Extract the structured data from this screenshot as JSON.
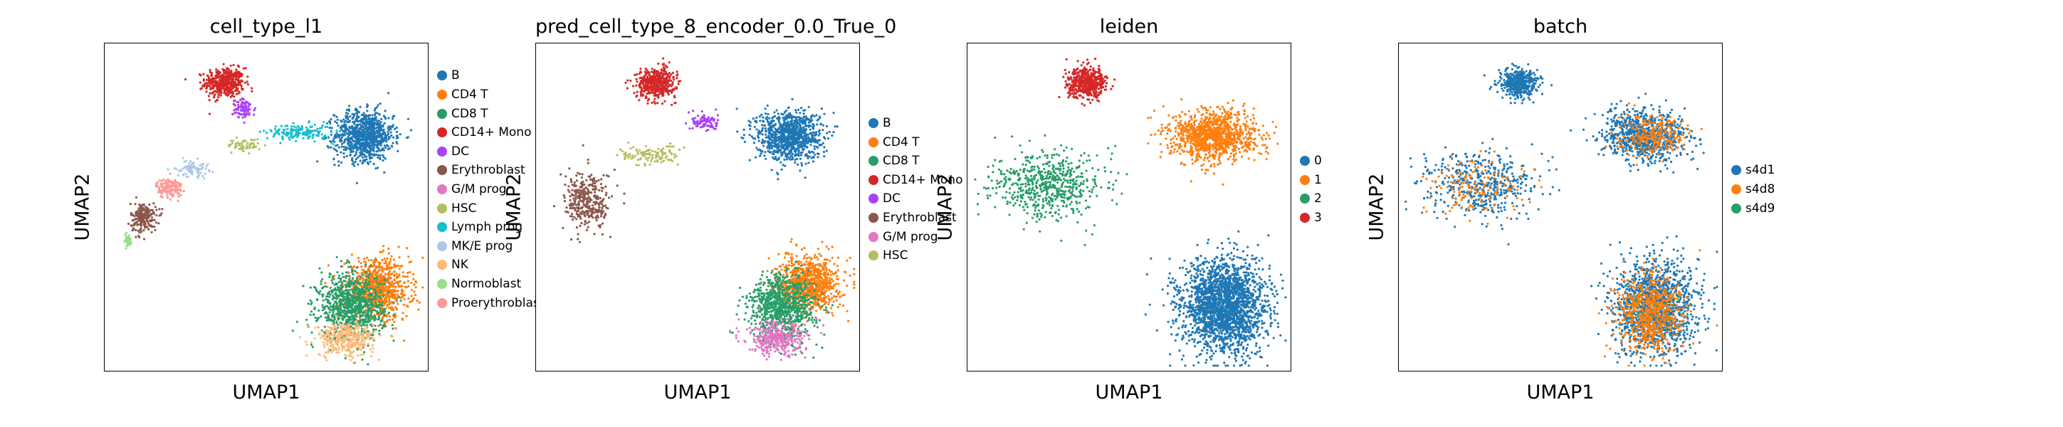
{
  "chart_data": [
    {
      "type": "scatter",
      "title": "cell_type_l1",
      "xlabel": "UMAP1",
      "ylabel": "UMAP2",
      "legend_position": "right",
      "legend": [
        {
          "label": "B",
          "color": "#1f77b4"
        },
        {
          "label": "CD4 T",
          "color": "#ff7f0e"
        },
        {
          "label": "CD8 T",
          "color": "#279e68"
        },
        {
          "label": "CD14+ Mono",
          "color": "#d62728"
        },
        {
          "label": "DC",
          "color": "#aa40fc"
        },
        {
          "label": "Erythroblast",
          "color": "#8c564b"
        },
        {
          "label": "G/M prog",
          "color": "#e377c2"
        },
        {
          "label": "HSC",
          "color": "#b5bd61"
        },
        {
          "label": "Lymph prog",
          "color": "#17becf"
        },
        {
          "label": "MK/E prog",
          "color": "#aec7e8"
        },
        {
          "label": "NK",
          "color": "#ffbb78"
        },
        {
          "label": "Normoblast",
          "color": "#98df8a"
        },
        {
          "label": "Proerythroblast",
          "color": "#ff9896"
        }
      ],
      "clusters": [
        {
          "cat": "CD14+ Mono",
          "cx": 0.37,
          "cy": 0.88,
          "rx": 0.06,
          "ry": 0.045,
          "n": 450
        },
        {
          "cat": "DC",
          "cx": 0.43,
          "cy": 0.8,
          "rx": 0.035,
          "ry": 0.03,
          "n": 90
        },
        {
          "cat": "B",
          "cx": 0.8,
          "cy": 0.72,
          "rx": 0.09,
          "ry": 0.075,
          "n": 900
        },
        {
          "cat": "Lymph prog",
          "cx": 0.6,
          "cy": 0.73,
          "rx": 0.1,
          "ry": 0.025,
          "n": 160
        },
        {
          "cat": "HSC",
          "cx": 0.43,
          "cy": 0.69,
          "rx": 0.05,
          "ry": 0.02,
          "n": 60
        },
        {
          "cat": "MK/E prog",
          "cx": 0.27,
          "cy": 0.62,
          "rx": 0.05,
          "ry": 0.025,
          "n": 80
        },
        {
          "cat": "Proerythroblast",
          "cx": 0.2,
          "cy": 0.56,
          "rx": 0.04,
          "ry": 0.03,
          "n": 150
        },
        {
          "cat": "Erythroblast",
          "cx": 0.12,
          "cy": 0.47,
          "rx": 0.04,
          "ry": 0.045,
          "n": 200
        },
        {
          "cat": "Normoblast",
          "cx": 0.07,
          "cy": 0.4,
          "rx": 0.015,
          "ry": 0.02,
          "n": 40
        },
        {
          "cat": "CD4 T",
          "cx": 0.84,
          "cy": 0.25,
          "rx": 0.1,
          "ry": 0.09,
          "n": 900
        },
        {
          "cat": "CD8 T",
          "cx": 0.76,
          "cy": 0.2,
          "rx": 0.1,
          "ry": 0.1,
          "n": 900
        },
        {
          "cat": "NK",
          "cx": 0.74,
          "cy": 0.1,
          "rx": 0.09,
          "ry": 0.05,
          "n": 350
        }
      ]
    },
    {
      "type": "scatter",
      "title": "pred_cell_type_8_encoder_0.0_True_0",
      "xlabel": "UMAP1",
      "ylabel": "UMAP2",
      "legend_position": "right",
      "legend": [
        {
          "label": "B",
          "color": "#1f77b4"
        },
        {
          "label": "CD4 T",
          "color": "#ff7f0e"
        },
        {
          "label": "CD8 T",
          "color": "#279e68"
        },
        {
          "label": "CD14+ Mono",
          "color": "#d62728"
        },
        {
          "label": "DC",
          "color": "#aa40fc"
        },
        {
          "label": "Erythroblast",
          "color": "#8c564b"
        },
        {
          "label": "G/M prog",
          "color": "#e377c2"
        },
        {
          "label": "HSC",
          "color": "#b5bd61"
        }
      ],
      "clusters": [
        {
          "cat": "CD14+ Mono",
          "cx": 0.37,
          "cy": 0.88,
          "rx": 0.06,
          "ry": 0.045,
          "n": 450
        },
        {
          "cat": "DC",
          "cx": 0.52,
          "cy": 0.76,
          "rx": 0.04,
          "ry": 0.03,
          "n": 90
        },
        {
          "cat": "B",
          "cx": 0.78,
          "cy": 0.72,
          "rx": 0.1,
          "ry": 0.075,
          "n": 950
        },
        {
          "cat": "HSC",
          "cx": 0.35,
          "cy": 0.66,
          "rx": 0.09,
          "ry": 0.03,
          "n": 120
        },
        {
          "cat": "Erythroblast",
          "cx": 0.16,
          "cy": 0.52,
          "rx": 0.07,
          "ry": 0.09,
          "n": 330
        },
        {
          "cat": "CD4 T",
          "cx": 0.84,
          "cy": 0.27,
          "rx": 0.09,
          "ry": 0.08,
          "n": 900
        },
        {
          "cat": "CD8 T",
          "cx": 0.76,
          "cy": 0.2,
          "rx": 0.1,
          "ry": 0.1,
          "n": 900
        },
        {
          "cat": "G/M prog",
          "cx": 0.74,
          "cy": 0.1,
          "rx": 0.09,
          "ry": 0.05,
          "n": 350
        }
      ]
    },
    {
      "type": "scatter",
      "title": "leiden",
      "xlabel": "UMAP1",
      "ylabel": "UMAP2",
      "legend_position": "right",
      "legend": [
        {
          "label": "0",
          "color": "#1f77b4"
        },
        {
          "label": "1",
          "color": "#ff7f0e"
        },
        {
          "label": "2",
          "color": "#279e68"
        },
        {
          "label": "3",
          "color": "#d62728"
        }
      ],
      "clusters": [
        {
          "cat": "3",
          "cx": 0.37,
          "cy": 0.88,
          "rx": 0.06,
          "ry": 0.045,
          "n": 500
        },
        {
          "cat": "1",
          "cx": 0.76,
          "cy": 0.72,
          "rx": 0.13,
          "ry": 0.075,
          "n": 1100
        },
        {
          "cat": "2",
          "cx": 0.25,
          "cy": 0.57,
          "rx": 0.17,
          "ry": 0.1,
          "n": 600
        },
        {
          "cat": "0",
          "cx": 0.79,
          "cy": 0.2,
          "rx": 0.13,
          "ry": 0.14,
          "n": 2200
        }
      ]
    },
    {
      "type": "scatter",
      "title": "batch",
      "xlabel": "UMAP1",
      "ylabel": "UMAP2",
      "legend_position": "right",
      "legend": [
        {
          "label": "s4d1",
          "color": "#1f77b4"
        },
        {
          "label": "s4d8",
          "color": "#ff7f0e"
        },
        {
          "label": "s4d9",
          "color": "#279e68"
        }
      ],
      "clusters": [
        {
          "cat": "s4d1",
          "cx": 0.37,
          "cy": 0.88,
          "rx": 0.06,
          "ry": 0.045,
          "n": 450
        },
        {
          "cat": "s4d1",
          "cx": 0.76,
          "cy": 0.72,
          "rx": 0.13,
          "ry": 0.075,
          "n": 800
        },
        {
          "cat": "s4d8",
          "cx": 0.78,
          "cy": 0.72,
          "rx": 0.11,
          "ry": 0.06,
          "n": 250
        },
        {
          "cat": "s4d1",
          "cx": 0.25,
          "cy": 0.57,
          "rx": 0.17,
          "ry": 0.1,
          "n": 450
        },
        {
          "cat": "s4d8",
          "cx": 0.24,
          "cy": 0.57,
          "rx": 0.15,
          "ry": 0.09,
          "n": 150
        },
        {
          "cat": "s4d1",
          "cx": 0.79,
          "cy": 0.2,
          "rx": 0.13,
          "ry": 0.14,
          "n": 1400
        },
        {
          "cat": "s4d8",
          "cx": 0.77,
          "cy": 0.18,
          "rx": 0.1,
          "ry": 0.12,
          "n": 700
        },
        {
          "cat": "s4d9",
          "cx": 0.78,
          "cy": 0.2,
          "rx": 0.12,
          "ry": 0.13,
          "n": 30
        }
      ]
    }
  ]
}
